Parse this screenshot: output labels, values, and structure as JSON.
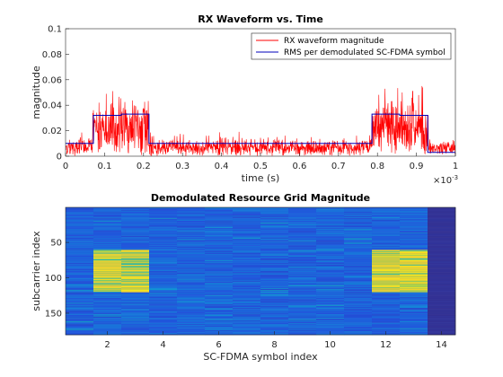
{
  "chart_data": [
    {
      "type": "line",
      "title": "RX Waveform vs. Time",
      "xlabel": "time (s)",
      "ylabel": "magnitude",
      "xlim": [
        0,
        0.001
      ],
      "ylim": [
        0,
        0.1
      ],
      "x_exponent_label": "×10",
      "x_exponent_power": "-3",
      "xticks": [
        0,
        0.1,
        0.2,
        0.3,
        0.4,
        0.5,
        0.6,
        0.7,
        0.8,
        0.9,
        1
      ],
      "xtick_labels": [
        "0",
        "0.1",
        "0.2",
        "0.3",
        "0.4",
        "0.5",
        "0.6",
        "0.7",
        "0.8",
        "0.9",
        "1"
      ],
      "yticks": [
        0,
        0.02,
        0.04,
        0.06,
        0.08,
        0.1
      ],
      "ytick_labels": [
        "0",
        "0.02",
        "0.04",
        "0.06",
        "0.08",
        "0.1"
      ],
      "legend_position": "top-right",
      "grid": false,
      "series": [
        {
          "name": "RX waveform magnitude",
          "color": "#ff0000",
          "style": "noisy",
          "segments": [
            {
              "x0": 0.0,
              "x1": 7e-05,
              "mean": 0.01
            },
            {
              "x0": 7e-05,
              "x1": 0.000215,
              "mean": 0.032
            },
            {
              "x0": 0.000215,
              "x1": 0.000785,
              "mean": 0.01
            },
            {
              "x0": 0.000785,
              "x1": 0.00093,
              "mean": 0.033
            },
            {
              "x0": 0.00093,
              "x1": 0.001,
              "mean": 0.008
            }
          ]
        },
        {
          "name": "RMS per demodulated SC-FDMA symbol",
          "color": "#0000bb",
          "style": "step",
          "x": [
            0,
            7.14e-05,
            0.000143,
            0.000214,
            0.000286,
            0.000357,
            0.000429,
            0.0005,
            0.000571,
            0.000643,
            0.000714,
            0.000786,
            0.000857,
            0.000929,
            0.001
          ],
          "y": [
            0.01,
            0.032,
            0.033,
            0.01,
            0.01,
            0.01,
            0.01,
            0.01,
            0.01,
            0.01,
            0.01,
            0.033,
            0.032,
            0.003,
            0.003
          ]
        }
      ]
    },
    {
      "type": "heatmap",
      "title": "Demodulated Resource Grid Magnitude",
      "xlabel": "SC-FDMA symbol index",
      "ylabel": "subcarrier index",
      "xlim": [
        0.5,
        14.5
      ],
      "ylim": [
        0.5,
        180.5
      ],
      "xticks": [
        2,
        4,
        6,
        8,
        10,
        12,
        14
      ],
      "yticks": [
        50,
        100,
        150
      ],
      "colors": {
        "low": "#3d35a8",
        "background": "#3a5ee0",
        "mid": "#1ea8d8",
        "high": "#e8d020"
      },
      "columns": 14,
      "rows": 180,
      "high_blocks": [
        {
          "symbols": [
            2,
            3
          ],
          "subcarriers": [
            61,
            120
          ]
        },
        {
          "symbols": [
            12,
            13
          ],
          "subcarriers": [
            61,
            120
          ]
        }
      ],
      "empty_symbols": [
        14
      ]
    }
  ]
}
